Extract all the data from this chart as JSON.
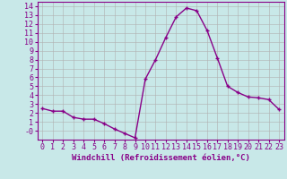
{
  "x": [
    0,
    1,
    2,
    3,
    4,
    5,
    6,
    7,
    8,
    9,
    10,
    11,
    12,
    13,
    14,
    15,
    16,
    17,
    18,
    19,
    20,
    21,
    22,
    23
  ],
  "y": [
    2.5,
    2.2,
    2.2,
    1.5,
    1.3,
    1.3,
    0.8,
    0.2,
    -0.3,
    -0.8,
    5.8,
    8.0,
    10.5,
    12.8,
    13.8,
    13.5,
    11.3,
    8.2,
    5.0,
    4.3,
    3.8,
    3.7,
    3.5,
    2.4
  ],
  "line_color": "#880088",
  "marker": "+",
  "marker_size": 3.5,
  "linewidth": 1.0,
  "bg_color": "#c8e8e8",
  "grid_color": "#b0b0b0",
  "xlabel": "Windchill (Refroidissement éolien,°C)",
  "ylim": [
    -1.0,
    14.5
  ],
  "xlim": [
    -0.5,
    23.5
  ],
  "xlabel_fontsize": 6.5,
  "tick_fontsize": 6.0
}
